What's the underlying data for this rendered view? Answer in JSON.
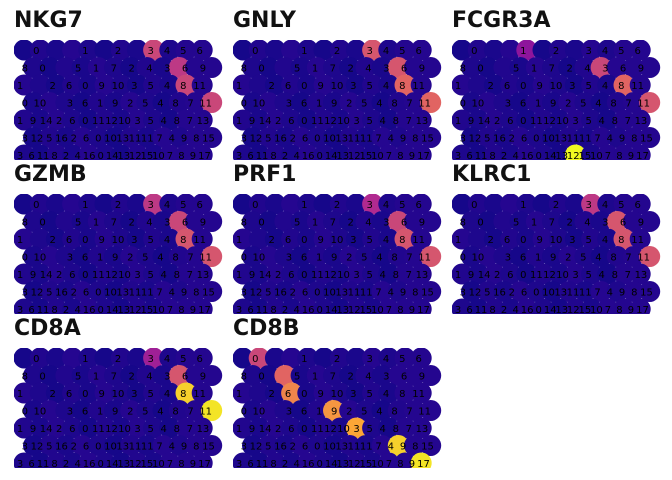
{
  "chart_data": {
    "type": "scatter",
    "description": "Spatial feature plots of gene expression; hexagonal spots colored by expression level, each spot labelled with its cluster number",
    "colormap": [
      "#0d0887",
      "#6a00a8",
      "#b12a90",
      "#e16462",
      "#fca636",
      "#f0f921"
    ],
    "spot_labels": [
      [
        "",
        "0",
        "",
        "",
        "1",
        "",
        "2",
        "",
        "3",
        "4",
        "5",
        "6"
      ],
      [
        "8",
        "0",
        "",
        "5",
        "1",
        "7",
        "2",
        "4",
        "3",
        "6",
        "9"
      ],
      [
        "1",
        "",
        "2",
        "6",
        "0",
        "9",
        "10",
        "3",
        "5",
        "4",
        "8",
        "11"
      ],
      [
        "0",
        "10",
        "",
        "3",
        "6",
        "1",
        "9",
        "2",
        "5",
        "4",
        "8",
        "7",
        "11"
      ],
      [
        "1",
        "9",
        "14",
        "2",
        "6",
        "0",
        "11",
        "12",
        "10",
        "3",
        "5",
        "4",
        "8",
        "7",
        "13"
      ],
      [
        "3",
        "12",
        "5",
        "16",
        "2",
        "6",
        "0",
        "10",
        "13",
        "11",
        "11",
        "7",
        "4",
        "9",
        "8",
        "15"
      ],
      [
        "3",
        "6",
        "11",
        "8",
        "2",
        "4",
        "16",
        "0",
        "14",
        "13",
        "12",
        "15",
        "10",
        "7",
        "8",
        "9",
        "17"
      ]
    ],
    "panels": [
      {
        "gene": "NKG7",
        "hot": [
          [
            0,
            8,
            0.5
          ],
          [
            1,
            9,
            0.45
          ],
          [
            2,
            10,
            0.5
          ],
          [
            3,
            11,
            0.5
          ],
          [
            4,
            12,
            0.5
          ],
          [
            5,
            13,
            0.5
          ],
          [
            6,
            13,
            0.45
          ]
        ]
      },
      {
        "gene": "GNLY",
        "hot": [
          [
            0,
            8,
            0.55
          ],
          [
            1,
            9,
            0.55
          ],
          [
            2,
            10,
            0.6
          ],
          [
            3,
            11,
            0.6
          ],
          [
            4,
            12,
            0.55
          ],
          [
            5,
            13,
            0.55
          ],
          [
            6,
            13,
            0.6
          ]
        ]
      },
      {
        "gene": "FCGR3A",
        "hot": [
          [
            0,
            4,
            0.3
          ],
          [
            1,
            8,
            0.5
          ],
          [
            2,
            10,
            0.6
          ],
          [
            3,
            11,
            0.55
          ],
          [
            4,
            12,
            0.5
          ],
          [
            5,
            13,
            0.5
          ],
          [
            6,
            7,
            1.0
          ]
        ]
      },
      {
        "gene": "GZMB",
        "hot": [
          [
            0,
            8,
            0.45
          ],
          [
            1,
            9,
            0.5
          ],
          [
            2,
            10,
            0.55
          ],
          [
            3,
            11,
            0.55
          ],
          [
            4,
            12,
            0.5
          ],
          [
            5,
            13,
            0.5
          ],
          [
            6,
            13,
            0.45
          ]
        ]
      },
      {
        "gene": "PRF1",
        "hot": [
          [
            0,
            8,
            0.4
          ],
          [
            1,
            9,
            0.5
          ],
          [
            2,
            10,
            0.55
          ],
          [
            3,
            11,
            0.55
          ],
          [
            4,
            12,
            0.5
          ],
          [
            5,
            13,
            0.55
          ],
          [
            6,
            13,
            0.5
          ]
        ]
      },
      {
        "gene": "KLRC1",
        "hot": [
          [
            0,
            8,
            0.45
          ],
          [
            1,
            9,
            0.55
          ],
          [
            2,
            10,
            0.55
          ],
          [
            3,
            11,
            0.55
          ],
          [
            4,
            12,
            0.5
          ],
          [
            5,
            13,
            0.5
          ],
          [
            6,
            13,
            0.45
          ]
        ]
      },
      {
        "gene": "CD8A",
        "hot": [
          [
            0,
            8,
            0.35
          ],
          [
            1,
            9,
            0.55
          ],
          [
            2,
            10,
            0.9
          ],
          [
            3,
            11,
            0.95
          ],
          [
            4,
            12,
            0.9
          ],
          [
            5,
            13,
            1.0
          ],
          [
            6,
            13,
            0.9
          ]
        ]
      },
      {
        "gene": "CD8B",
        "hot": [
          [
            0,
            1,
            0.5
          ],
          [
            1,
            2,
            0.6
          ],
          [
            2,
            3,
            0.7
          ],
          [
            3,
            5,
            0.75
          ],
          [
            4,
            7,
            0.8
          ],
          [
            5,
            9,
            0.9
          ],
          [
            6,
            11,
            0.95
          ]
        ]
      }
    ],
    "xlabel": "",
    "ylabel": ""
  }
}
